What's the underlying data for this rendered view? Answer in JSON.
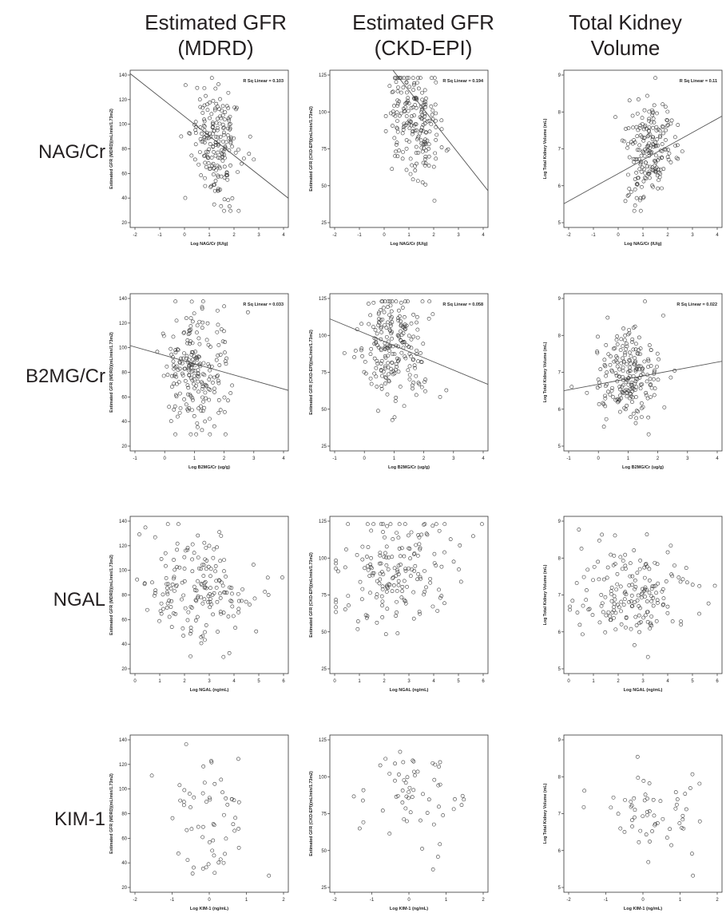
{
  "headers": {
    "columns": [
      {
        "line1": "Estimated GFR",
        "line2": "(MDRD)"
      },
      {
        "line1": "Estimated GFR",
        "line2": "(CKD-EPI)"
      },
      {
        "line1": "Total Kidney",
        "line2": "Volume"
      }
    ],
    "rows": [
      "NAG/Cr",
      "B2MG/Cr",
      "NGAL",
      "KIM-1"
    ]
  },
  "chart_data": [
    {
      "type": "scatter",
      "row": 0,
      "col": 0,
      "xlabel": "Log NAG/Cr (IU/g)",
      "ylabel": "Estimated GFR (MDRD)(mL/min/1.73m2)",
      "xlim": [
        -2,
        4
      ],
      "ylim": [
        20,
        140
      ],
      "xticks": [
        -2,
        -1,
        0,
        1,
        2,
        3,
        4
      ],
      "yticks": [
        20,
        40,
        60,
        80,
        100,
        120,
        140
      ],
      "annotation": "R Sq Linear = 0.103",
      "fit": [
        [
          -2.5,
          146
        ],
        [
          4.5,
          35
        ]
      ],
      "seed": 11,
      "n": 200,
      "cx": 1.3,
      "sx": 0.55,
      "cy": 85,
      "sy": 22
    },
    {
      "type": "scatter",
      "row": 0,
      "col": 1,
      "xlabel": "Log NAG/Cr (IU/g)",
      "ylabel": "Estimated GFR (CKD-EPI)(mL/min/1.73m2)",
      "xlim": [
        -2,
        4
      ],
      "ylim": [
        25,
        125
      ],
      "xticks": [
        -2,
        -1,
        0,
        1,
        2,
        3,
        4
      ],
      "yticks": [
        25,
        50,
        75,
        100,
        125
      ],
      "annotation": "R Sq Linear = 0.194",
      "fit": [
        [
          -0.2,
          140
        ],
        [
          4.6,
          38
        ]
      ],
      "seed": 12,
      "n": 200,
      "cx": 1.2,
      "sx": 0.5,
      "cy": 93,
      "sy": 20
    },
    {
      "type": "scatter",
      "row": 0,
      "col": 2,
      "xlabel": "Log NAG/Cr (IU/g)",
      "ylabel": "Log Total Kidney Volume (mL)",
      "xlim": [
        -2,
        4
      ],
      "ylim": [
        5,
        9
      ],
      "xticks": [
        -2,
        -1,
        0,
        1,
        2,
        3,
        4
      ],
      "yticks": [
        5,
        6,
        7,
        8,
        9
      ],
      "annotation": "R Sq Linear = 0.11",
      "fit": [
        [
          -2.5,
          5.4
        ],
        [
          4.5,
          8.0
        ]
      ],
      "seed": 13,
      "n": 200,
      "cx": 1.3,
      "sx": 0.55,
      "cy": 7.0,
      "sy": 0.65
    },
    {
      "type": "scatter",
      "row": 1,
      "col": 0,
      "xlabel": "Log B2MG/Cr (ug/g)",
      "ylabel": "Estimated GFR (MDRD)(mL/min/1.73m2)",
      "xlim": [
        -1,
        4
      ],
      "ylim": [
        20,
        140
      ],
      "xticks": [
        -1,
        0,
        1,
        2,
        3,
        4
      ],
      "yticks": [
        20,
        40,
        60,
        80,
        100,
        120,
        140
      ],
      "annotation": "R Sq Linear = 0.033",
      "fit": [
        [
          -1.5,
          104
        ],
        [
          4.5,
          63
        ]
      ],
      "seed": 21,
      "n": 220,
      "cx": 1.0,
      "sx": 0.55,
      "cy": 84,
      "sy": 24
    },
    {
      "type": "scatter",
      "row": 1,
      "col": 1,
      "xlabel": "Log B2MG/Cr (ug/g)",
      "ylabel": "Estimated GFR (CKD-EPI)(mL/min/1.73m2)",
      "xlim": [
        -1,
        4
      ],
      "ylim": [
        25,
        125
      ],
      "xticks": [
        -1,
        0,
        1,
        2,
        3,
        4
      ],
      "yticks": [
        25,
        50,
        75,
        100,
        125
      ],
      "annotation": "R Sq Linear = 0.058",
      "fit": [
        [
          -1.5,
          114
        ],
        [
          4.5,
          64
        ]
      ],
      "seed": 22,
      "n": 220,
      "cx": 1.0,
      "sx": 0.55,
      "cy": 93,
      "sy": 20
    },
    {
      "type": "scatter",
      "row": 1,
      "col": 2,
      "xlabel": "Log B2MG/Cr (ug/g)",
      "ylabel": "Log Total Kidney Volume (mL)",
      "xlim": [
        -1,
        4
      ],
      "ylim": [
        5,
        9
      ],
      "xticks": [
        -1,
        0,
        1,
        2,
        3,
        4
      ],
      "yticks": [
        5,
        6,
        7,
        8,
        9
      ],
      "annotation": "R Sq Linear = 0.022",
      "fit": [
        [
          -1.5,
          6.45
        ],
        [
          4.5,
          7.35
        ]
      ],
      "seed": 23,
      "n": 220,
      "cx": 1.0,
      "sx": 0.55,
      "cy": 6.9,
      "sy": 0.6
    },
    {
      "type": "scatter",
      "row": 2,
      "col": 0,
      "xlabel": "Log NGAL (ng/mL)",
      "ylabel": "Estimated GFR (MDRD)(mL/min/1.73m2)",
      "xlim": [
        0,
        6
      ],
      "ylim": [
        20,
        140
      ],
      "xticks": [
        0,
        1,
        2,
        3,
        4,
        5,
        6
      ],
      "yticks": [
        20,
        40,
        60,
        80,
        100,
        120,
        140
      ],
      "annotation": "",
      "fit": null,
      "seed": 31,
      "n": 180,
      "cx": 2.6,
      "sx": 1.15,
      "cy": 83,
      "sy": 22
    },
    {
      "type": "scatter",
      "row": 2,
      "col": 1,
      "xlabel": "Log NGAL (ng/mL)",
      "ylabel": "Estimated GFR (CKD-EPI)(mL/min/1.73m2)",
      "xlim": [
        0,
        6
      ],
      "ylim": [
        25,
        125
      ],
      "xticks": [
        0,
        1,
        2,
        3,
        4,
        5,
        6
      ],
      "yticks": [
        25,
        50,
        75,
        100,
        125
      ],
      "annotation": "",
      "fit": null,
      "seed": 32,
      "n": 180,
      "cx": 2.6,
      "sx": 1.15,
      "cy": 92,
      "sy": 19
    },
    {
      "type": "scatter",
      "row": 2,
      "col": 2,
      "xlabel": "Log NGAL (ng/mL)",
      "ylabel": "Log Total Kidney Volume (mL)",
      "xlim": [
        0,
        6
      ],
      "ylim": [
        5,
        9
      ],
      "xticks": [
        0,
        1,
        2,
        3,
        4,
        5,
        6
      ],
      "yticks": [
        5,
        6,
        7,
        8,
        9
      ],
      "annotation": "",
      "fit": null,
      "seed": 33,
      "n": 180,
      "cx": 2.6,
      "sx": 1.15,
      "cy": 6.95,
      "sy": 0.6
    },
    {
      "type": "scatter",
      "row": 3,
      "col": 0,
      "xlabel": "Log KIM-1 (ng/mL)",
      "ylabel": "Estimated GFR (MDRD)(mL/min/1.73m2)",
      "xlim": [
        -2,
        2
      ],
      "ylim": [
        20,
        140
      ],
      "xticks": [
        -2,
        -1,
        0,
        1,
        2
      ],
      "yticks": [
        20,
        40,
        60,
        80,
        100,
        120,
        140
      ],
      "annotation": "",
      "fit": null,
      "seed": 41,
      "n": 60,
      "cx": 0.0,
      "sx": 0.6,
      "cy": 80,
      "sy": 24
    },
    {
      "type": "scatter",
      "row": 3,
      "col": 1,
      "xlabel": "Log KIM-1 (ng/mL)",
      "ylabel": "Estimated GFR (CKD-EPI)(mL/min/1.73m2)",
      "xlim": [
        -2,
        2
      ],
      "ylim": [
        25,
        125
      ],
      "xticks": [
        -2,
        -1,
        0,
        1,
        2
      ],
      "yticks": [
        25,
        50,
        75,
        100,
        125
      ],
      "annotation": "",
      "fit": null,
      "seed": 42,
      "n": 60,
      "cx": 0.0,
      "sx": 0.6,
      "cy": 88,
      "sy": 20
    },
    {
      "type": "scatter",
      "row": 3,
      "col": 2,
      "xlabel": "Log KIM-1 (ng/mL)",
      "ylabel": "Log Total Kidney Volume (mL)",
      "xlim": [
        -2,
        2
      ],
      "ylim": [
        5,
        9
      ],
      "xticks": [
        -2,
        -1,
        0,
        1,
        2
      ],
      "yticks": [
        5,
        6,
        7,
        8,
        9
      ],
      "annotation": "",
      "fit": null,
      "seed": 43,
      "n": 60,
      "cx": 0.2,
      "sx": 0.6,
      "cy": 7.2,
      "sy": 0.6
    }
  ]
}
